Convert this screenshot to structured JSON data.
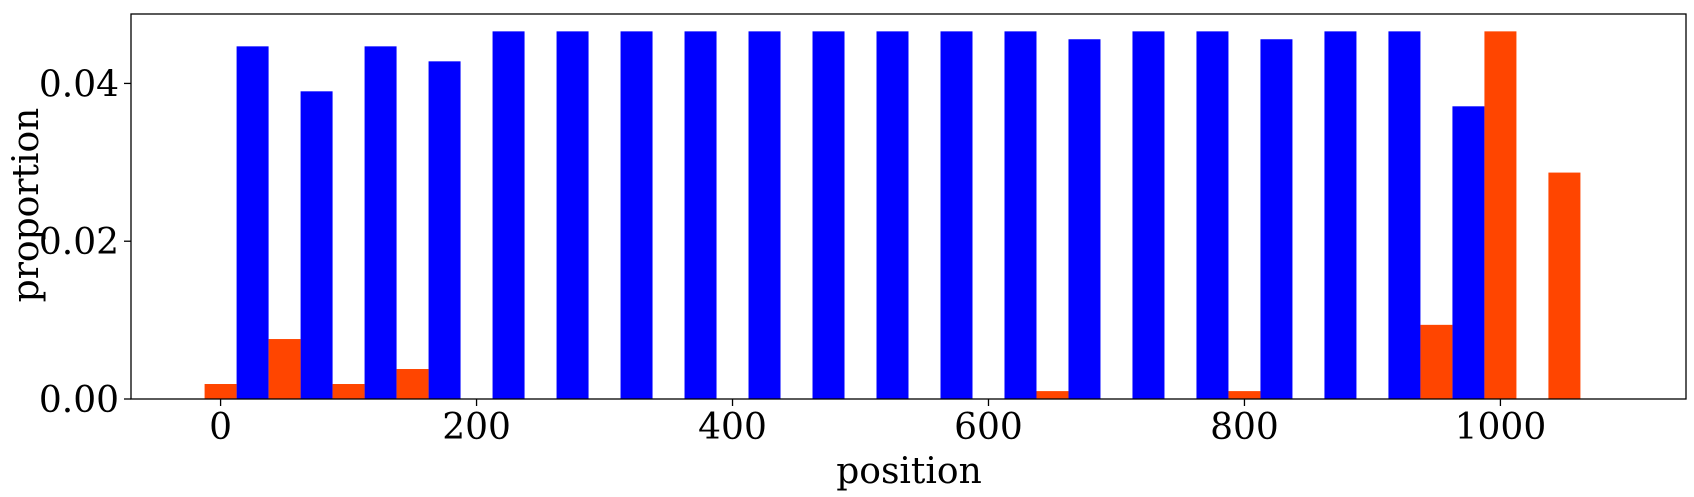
{
  "chart_data": {
    "type": "bar",
    "title": "",
    "xlabel": "position",
    "ylabel": "proportion",
    "xlim": [
      -70,
      1145
    ],
    "ylim": [
      0,
      0.0488
    ],
    "grid": false,
    "legend": "none",
    "bar_width": 25,
    "x_ticks": [
      0,
      200,
      400,
      600,
      800,
      1000
    ],
    "x_tick_labels": [
      "0",
      "200",
      "400",
      "600",
      "800",
      "1000"
    ],
    "y_ticks": [
      0.0,
      0.02,
      0.04
    ],
    "y_tick_labels": [
      "0.00",
      "0.02",
      "0.04"
    ],
    "series": [
      {
        "color": "#0000ff",
        "x": [
          25,
          75,
          125,
          175,
          225,
          275,
          325,
          375,
          425,
          475,
          525,
          575,
          625,
          675,
          725,
          775,
          825,
          875,
          925,
          975
        ],
        "values": [
          0.0447,
          0.039,
          0.0447,
          0.0428,
          0.0466,
          0.0466,
          0.0466,
          0.0466,
          0.0466,
          0.0466,
          0.0466,
          0.0466,
          0.0466,
          0.0456,
          0.0466,
          0.0466,
          0.0456,
          0.0466,
          0.0466,
          0.0371
        ]
      },
      {
        "color": "#ff4500",
        "x": [
          0,
          50,
          100,
          150,
          650,
          800,
          950,
          1000,
          1050
        ],
        "values": [
          0.0019,
          0.0076,
          0.0019,
          0.0038,
          0.001,
          0.001,
          0.0094,
          0.0466,
          0.0287
        ]
      }
    ]
  }
}
